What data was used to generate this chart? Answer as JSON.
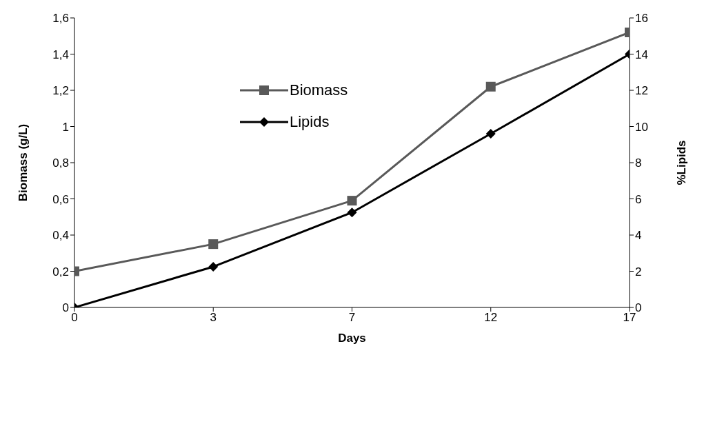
{
  "chart_data": {
    "type": "line",
    "xlabel": "Days",
    "ylabel": "Biomass (g/L)",
    "y2label": "%Lipids",
    "categories": [
      "0",
      "3",
      "7",
      "12",
      "17"
    ],
    "series": [
      {
        "name": "Biomass",
        "color": "#595959",
        "marker": "square",
        "values": [
          0.2,
          0.35,
          0.59,
          1.22,
          1.52
        ]
      },
      {
        "name": "Lipids",
        "color": "#000000",
        "marker": "diamond",
        "axis": "y2",
        "values": [
          0,
          2.25,
          5.25,
          9.6,
          14.0
        ]
      }
    ],
    "ylim": [
      0,
      1.6
    ],
    "yticks": [
      0,
      {
        "value": 0.2,
        "label": "0,2"
      },
      {
        "value": 0.4,
        "label": "0,4"
      },
      {
        "value": 0.6,
        "label": "0,6"
      },
      {
        "value": 0.8,
        "label": "0,8"
      },
      1,
      {
        "value": 1.2,
        "label": "1,2"
      },
      {
        "value": 1.4,
        "label": "1,4"
      },
      {
        "value": 1.6,
        "label": "1,6"
      }
    ],
    "y2lim": [
      0,
      16
    ],
    "y2ticks": [
      0,
      2,
      4,
      6,
      8,
      10,
      12,
      14,
      16
    ],
    "grid": false,
    "legend": "top left",
    "line_style": "solid"
  }
}
